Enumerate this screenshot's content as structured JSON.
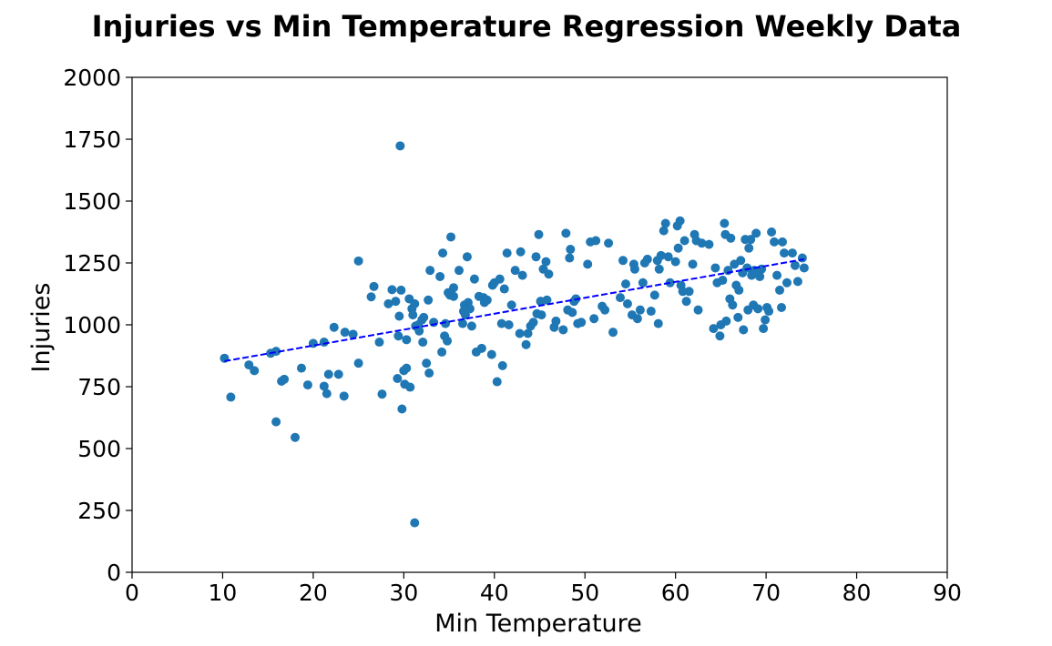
{
  "chart_data": {
    "type": "scatter",
    "title": "Injuries vs Min Temperature Regression Weekly Data",
    "xlabel": "Min Temperature",
    "ylabel": "Injuries",
    "xlim": [
      0,
      90
    ],
    "ylim": [
      0,
      2000
    ],
    "xticks": [
      0,
      10,
      20,
      30,
      40,
      50,
      60,
      70,
      80,
      90
    ],
    "yticks": [
      0,
      250,
      500,
      750,
      1000,
      1250,
      1500,
      1750,
      2000
    ],
    "xtick_labels": [
      "0",
      "10",
      "20",
      "30",
      "40",
      "50",
      "60",
      "70",
      "80",
      "90"
    ],
    "ytick_labels": [
      "0",
      "250",
      "500",
      "750",
      "1000",
      "1250",
      "1500",
      "1750",
      "2000"
    ],
    "grid": false,
    "colors": {
      "points": "#1f77b4",
      "regression": "#0000ff"
    },
    "regression_line": {
      "x": [
        10.2,
        74.2
      ],
      "y": [
        853,
        1265
      ],
      "style": "dashed"
    },
    "points": [
      [
        10.2,
        865
      ],
      [
        10.9,
        708
      ],
      [
        12.9,
        838
      ],
      [
        13.5,
        815
      ],
      [
        15.3,
        885
      ],
      [
        15.9,
        893
      ],
      [
        15.9,
        608
      ],
      [
        16.5,
        772
      ],
      [
        16.8,
        780
      ],
      [
        18.0,
        545
      ],
      [
        18.7,
        825
      ],
      [
        19.4,
        757
      ],
      [
        20.0,
        925
      ],
      [
        21.2,
        930
      ],
      [
        21.2,
        752
      ],
      [
        21.5,
        722
      ],
      [
        21.7,
        800
      ],
      [
        22.3,
        990
      ],
      [
        22.8,
        800
      ],
      [
        23.4,
        712
      ],
      [
        23.5,
        970
      ],
      [
        24.4,
        962
      ],
      [
        25.0,
        845
      ],
      [
        25.0,
        1258
      ],
      [
        26.4,
        1113
      ],
      [
        26.7,
        1155
      ],
      [
        27.3,
        930
      ],
      [
        27.6,
        720
      ],
      [
        28.3,
        1085
      ],
      [
        28.7,
        1142
      ],
      [
        29.1,
        1095
      ],
      [
        29.3,
        783
      ],
      [
        29.4,
        955
      ],
      [
        29.5,
        1035
      ],
      [
        29.6,
        1723
      ],
      [
        29.7,
        1140
      ],
      [
        29.8,
        660
      ],
      [
        30.0,
        815
      ],
      [
        30.1,
        760
      ],
      [
        30.3,
        825
      ],
      [
        30.3,
        940
      ],
      [
        30.6,
        1105
      ],
      [
        30.7,
        748
      ],
      [
        30.9,
        1065
      ],
      [
        31.0,
        1040
      ],
      [
        31.2,
        1085
      ],
      [
        31.3,
        995
      ],
      [
        31.2,
        200
      ],
      [
        31.6,
        1000
      ],
      [
        31.7,
        975
      ],
      [
        32.0,
        1020
      ],
      [
        32.1,
        930
      ],
      [
        32.2,
        1030
      ],
      [
        32.5,
        845
      ],
      [
        32.7,
        1100
      ],
      [
        32.8,
        805
      ],
      [
        32.9,
        1220
      ],
      [
        33.3,
        1010
      ],
      [
        34.0,
        1195
      ],
      [
        34.2,
        890
      ],
      [
        34.3,
        1290
      ],
      [
        34.5,
        955
      ],
      [
        34.6,
        1005
      ],
      [
        34.8,
        935
      ],
      [
        34.9,
        1130
      ],
      [
        35.1,
        1120
      ],
      [
        35.2,
        1355
      ],
      [
        35.5,
        1150
      ],
      [
        35.5,
        1115
      ],
      [
        36.1,
        1220
      ],
      [
        36.5,
        1005
      ],
      [
        36.6,
        1055
      ],
      [
        36.7,
        1080
      ],
      [
        36.8,
        1040
      ],
      [
        37.0,
        1275
      ],
      [
        37.1,
        1090
      ],
      [
        37.3,
        1065
      ],
      [
        37.5,
        995
      ],
      [
        37.8,
        1185
      ],
      [
        38.0,
        890
      ],
      [
        38.3,
        1115
      ],
      [
        38.6,
        905
      ],
      [
        38.8,
        1110
      ],
      [
        38.9,
        1090
      ],
      [
        39.2,
        1100
      ],
      [
        39.7,
        880
      ],
      [
        39.8,
        1160
      ],
      [
        40.0,
        1170
      ],
      [
        40.3,
        770
      ],
      [
        40.6,
        1185
      ],
      [
        40.8,
        1005
      ],
      [
        40.9,
        835
      ],
      [
        41.1,
        1145
      ],
      [
        41.4,
        1290
      ],
      [
        41.6,
        1000
      ],
      [
        41.9,
        1080
      ],
      [
        42.3,
        1220
      ],
      [
        42.8,
        965
      ],
      [
        42.9,
        1295
      ],
      [
        43.1,
        1200
      ],
      [
        43.5,
        920
      ],
      [
        43.7,
        965
      ],
      [
        44.0,
        995
      ],
      [
        44.3,
        1010
      ],
      [
        44.6,
        1275
      ],
      [
        44.7,
        1045
      ],
      [
        44.9,
        1365
      ],
      [
        45.1,
        1095
      ],
      [
        45.2,
        1040
      ],
      [
        45.4,
        1225
      ],
      [
        45.7,
        1255
      ],
      [
        45.8,
        1100
      ],
      [
        46.0,
        1205
      ],
      [
        46.6,
        990
      ],
      [
        46.8,
        1015
      ],
      [
        47.6,
        980
      ],
      [
        47.9,
        1370
      ],
      [
        48.1,
        1060
      ],
      [
        48.3,
        1270
      ],
      [
        48.4,
        1305
      ],
      [
        48.6,
        1050
      ],
      [
        48.8,
        1095
      ],
      [
        49.0,
        1105
      ],
      [
        49.2,
        1005
      ],
      [
        49.6,
        1010
      ],
      [
        50.3,
        1245
      ],
      [
        50.6,
        1335
      ],
      [
        51.0,
        1025
      ],
      [
        51.2,
        1340
      ],
      [
        51.9,
        1075
      ],
      [
        52.2,
        1060
      ],
      [
        52.6,
        1330
      ],
      [
        53.1,
        970
      ],
      [
        53.9,
        1110
      ],
      [
        54.2,
        1260
      ],
      [
        54.5,
        1165
      ],
      [
        54.7,
        1085
      ],
      [
        55.2,
        1040
      ],
      [
        55.4,
        1245
      ],
      [
        55.5,
        1225
      ],
      [
        55.8,
        1025
      ],
      [
        56.1,
        1060
      ],
      [
        56.4,
        1170
      ],
      [
        56.6,
        1250
      ],
      [
        56.9,
        1265
      ],
      [
        57.3,
        1055
      ],
      [
        57.7,
        1120
      ],
      [
        58.0,
        1260
      ],
      [
        58.1,
        1005
      ],
      [
        58.2,
        1225
      ],
      [
        58.4,
        1280
      ],
      [
        58.7,
        1380
      ],
      [
        58.9,
        1410
      ],
      [
        59.2,
        1275
      ],
      [
        59.4,
        1170
      ],
      [
        60.0,
        1255
      ],
      [
        60.2,
        1400
      ],
      [
        60.3,
        1310
      ],
      [
        60.5,
        1420
      ],
      [
        60.6,
        1160
      ],
      [
        60.8,
        1135
      ],
      [
        61.0,
        1340
      ],
      [
        61.2,
        1095
      ],
      [
        61.5,
        1135
      ],
      [
        61.9,
        1245
      ],
      [
        62.1,
        1365
      ],
      [
        62.3,
        1340
      ],
      [
        62.5,
        1060
      ],
      [
        62.9,
        1330
      ],
      [
        63.7,
        1325
      ],
      [
        64.2,
        985
      ],
      [
        64.4,
        1230
      ],
      [
        64.6,
        1170
      ],
      [
        64.9,
        955
      ],
      [
        65.0,
        1000
      ],
      [
        65.2,
        1180
      ],
      [
        65.4,
        1410
      ],
      [
        65.5,
        1365
      ],
      [
        65.6,
        1015
      ],
      [
        65.8,
        1220
      ],
      [
        66.0,
        1105
      ],
      [
        66.1,
        1350
      ],
      [
        66.3,
        1080
      ],
      [
        66.5,
        1245
      ],
      [
        66.7,
        1160
      ],
      [
        66.9,
        1030
      ],
      [
        67.0,
        1140
      ],
      [
        67.2,
        1260
      ],
      [
        67.4,
        1210
      ],
      [
        67.5,
        980
      ],
      [
        67.7,
        1345
      ],
      [
        67.9,
        1230
      ],
      [
        68.0,
        1060
      ],
      [
        68.1,
        1310
      ],
      [
        68.3,
        1345
      ],
      [
        68.4,
        1200
      ],
      [
        68.6,
        1080
      ],
      [
        68.7,
        1220
      ],
      [
        68.9,
        1370
      ],
      [
        69.1,
        1065
      ],
      [
        69.3,
        1195
      ],
      [
        69.5,
        1225
      ],
      [
        69.7,
        985
      ],
      [
        69.9,
        1020
      ],
      [
        70.1,
        1070
      ],
      [
        70.3,
        1055
      ],
      [
        70.6,
        1375
      ],
      [
        70.9,
        1335
      ],
      [
        71.2,
        1200
      ],
      [
        71.5,
        1140
      ],
      [
        71.7,
        1070
      ],
      [
        71.8,
        1335
      ],
      [
        72.0,
        1290
      ],
      [
        72.3,
        1170
      ],
      [
        72.9,
        1290
      ],
      [
        73.2,
        1240
      ],
      [
        73.5,
        1175
      ],
      [
        74.0,
        1270
      ],
      [
        74.2,
        1230
      ]
    ]
  }
}
